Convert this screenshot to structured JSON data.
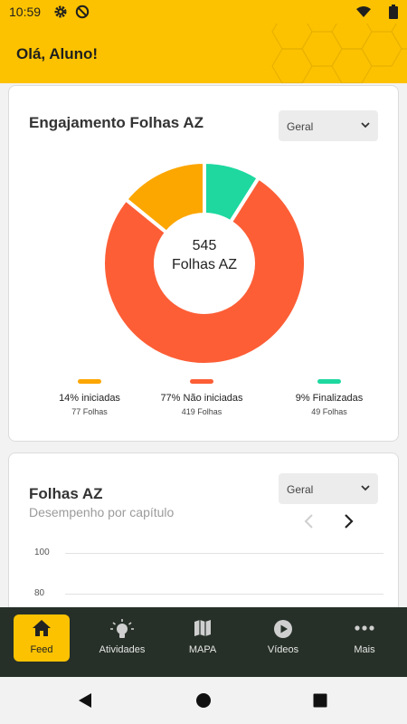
{
  "status_bar": {
    "time": "10:59",
    "icons": [
      "gear-icon",
      "at-sign-icon",
      "wifi-icon",
      "battery-icon"
    ]
  },
  "app_bar": {
    "greeting": "Olá, Aluno!",
    "background_color": "#fcc200"
  },
  "engagement_card": {
    "title": "Engajamento Folhas AZ",
    "filter_value": "Geral",
    "center_value": "545",
    "center_label": "Folhas AZ",
    "legend": [
      {
        "label": "14% iniciadas",
        "count": "77 Folhas",
        "color": "#fca600"
      },
      {
        "label": "77% Não iniciadas",
        "count": "419 Folhas",
        "color": "#fd5e36"
      },
      {
        "label": "9% Finalizadas",
        "count": "49 Folhas",
        "color": "#1ed8a0"
      }
    ]
  },
  "chart_data": {
    "type": "pie",
    "categories": [
      "Finalizadas",
      "Não iniciadas",
      "iniciadas"
    ],
    "values": [
      49,
      419,
      77
    ],
    "colors": [
      "#1ed8a0",
      "#fd5e36",
      "#fca600"
    ],
    "donut": true
  },
  "performance_card": {
    "title": "Folhas AZ",
    "subtitle": "Desempenho por capítulo",
    "filter_value": "Geral",
    "y_ticks": [
      "100",
      "80"
    ]
  },
  "bottom_nav": {
    "active_color": "#fcc200",
    "items": [
      {
        "label": "Feed",
        "icon": "home-icon",
        "active": true
      },
      {
        "label": "Atividades",
        "icon": "lightbulb-icon",
        "active": false
      },
      {
        "label": "MAPA",
        "icon": "map-icon",
        "active": false
      },
      {
        "label": "Vídeos",
        "icon": "play-icon",
        "active": false
      },
      {
        "label": "Mais",
        "icon": "more-dots-icon",
        "active": false
      }
    ]
  }
}
